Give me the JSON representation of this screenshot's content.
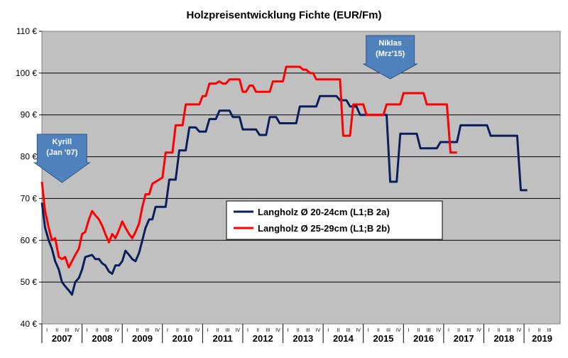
{
  "chart_data": {
    "type": "line",
    "title": "Holzpreisentwicklung Fichte (EUR/Fm)",
    "ylim": [
      40,
      110
    ],
    "yticks": [
      40,
      50,
      60,
      70,
      80,
      90,
      100,
      110
    ],
    "ytick_suffix": " €",
    "xlim": [
      2006.5,
      2019.4
    ],
    "quarter_labels": [
      "I",
      "II",
      "III",
      "IV"
    ],
    "years": [
      "2007",
      "2008",
      "2009",
      "2010",
      "2011",
      "2012",
      "2013",
      "2014",
      "2015",
      "2016",
      "2017",
      "2018",
      "2019"
    ],
    "grid": true,
    "legend_position": "center",
    "colors": {
      "plot_bg": "#c0c0c0",
      "series1": "#0a1f5c",
      "series2": "#ff0000",
      "annotation": "#4f81bd"
    },
    "series": [
      {
        "name": "Langholz Ø 20-24cm (L1;B 2a)",
        "color": "#0a1f5c",
        "points": [
          [
            2006.5,
            69
          ],
          [
            2006.58,
            63
          ],
          [
            2006.67,
            60
          ],
          [
            2006.75,
            58
          ],
          [
            2006.83,
            55
          ],
          [
            2006.92,
            53
          ],
          [
            2007.0,
            50
          ],
          [
            2007.08,
            49
          ],
          [
            2007.17,
            48
          ],
          [
            2007.25,
            47
          ],
          [
            2007.33,
            50
          ],
          [
            2007.42,
            51
          ],
          [
            2007.5,
            53
          ],
          [
            2007.58,
            56
          ],
          [
            2007.75,
            56.5
          ],
          [
            2007.83,
            55.5
          ],
          [
            2007.92,
            55.5
          ],
          [
            2008.0,
            54.5
          ],
          [
            2008.08,
            54
          ],
          [
            2008.17,
            52.5
          ],
          [
            2008.25,
            52
          ],
          [
            2008.33,
            54
          ],
          [
            2008.42,
            54
          ],
          [
            2008.5,
            55
          ],
          [
            2008.58,
            57.5
          ],
          [
            2008.67,
            56.5
          ],
          [
            2008.75,
            55.5
          ],
          [
            2008.83,
            55
          ],
          [
            2008.92,
            57
          ],
          [
            2009.0,
            60
          ],
          [
            2009.08,
            63
          ],
          [
            2009.17,
            65
          ],
          [
            2009.25,
            65
          ],
          [
            2009.33,
            68
          ],
          [
            2009.58,
            68
          ],
          [
            2009.67,
            74.5
          ],
          [
            2009.83,
            74.5
          ],
          [
            2009.92,
            81.5
          ],
          [
            2010.08,
            81.5
          ],
          [
            2010.17,
            87
          ],
          [
            2010.33,
            87
          ],
          [
            2010.42,
            86
          ],
          [
            2010.58,
            86
          ],
          [
            2010.67,
            89
          ],
          [
            2010.83,
            89
          ],
          [
            2010.92,
            91
          ],
          [
            2011.17,
            91
          ],
          [
            2011.25,
            89.5
          ],
          [
            2011.42,
            89.5
          ],
          [
            2011.5,
            86.5
          ],
          [
            2011.83,
            86.5
          ],
          [
            2011.92,
            85.2
          ],
          [
            2012.08,
            85.2
          ],
          [
            2012.17,
            89.5
          ],
          [
            2012.33,
            89.5
          ],
          [
            2012.42,
            88
          ],
          [
            2012.83,
            88
          ],
          [
            2012.92,
            92
          ],
          [
            2013.33,
            92
          ],
          [
            2013.42,
            94.5
          ],
          [
            2013.83,
            94.5
          ],
          [
            2013.92,
            93.5
          ],
          [
            2014.08,
            93.5
          ],
          [
            2014.17,
            92
          ],
          [
            2014.33,
            92
          ],
          [
            2014.42,
            90
          ],
          [
            2015.08,
            90
          ],
          [
            2015.17,
            74
          ],
          [
            2015.33,
            74
          ],
          [
            2015.42,
            85.5
          ],
          [
            2015.83,
            85.5
          ],
          [
            2015.92,
            82
          ],
          [
            2016.33,
            82
          ],
          [
            2016.42,
            83.5
          ],
          [
            2016.83,
            83.5
          ],
          [
            2016.92,
            87.5
          ],
          [
            2017.58,
            87.5
          ],
          [
            2017.67,
            85
          ],
          [
            2018.33,
            85
          ],
          [
            2018.42,
            72
          ],
          [
            2018.58,
            72
          ]
        ]
      },
      {
        "name": "Langholz Ø 25-29cm (L1;B 2b)",
        "color": "#ff0000",
        "points": [
          [
            2006.5,
            74
          ],
          [
            2006.58,
            67
          ],
          [
            2006.67,
            63
          ],
          [
            2006.75,
            60
          ],
          [
            2006.83,
            60.5
          ],
          [
            2006.92,
            56
          ],
          [
            2007.0,
            55.5
          ],
          [
            2007.08,
            56
          ],
          [
            2007.17,
            53.5
          ],
          [
            2007.25,
            55
          ],
          [
            2007.33,
            56.5
          ],
          [
            2007.42,
            58
          ],
          [
            2007.5,
            61.5
          ],
          [
            2007.58,
            62
          ],
          [
            2007.67,
            65
          ],
          [
            2007.75,
            67
          ],
          [
            2007.83,
            66
          ],
          [
            2007.92,
            65
          ],
          [
            2008.0,
            63.5
          ],
          [
            2008.08,
            61.5
          ],
          [
            2008.17,
            59.5
          ],
          [
            2008.25,
            61.5
          ],
          [
            2008.33,
            60.5
          ],
          [
            2008.42,
            62.5
          ],
          [
            2008.5,
            64.5
          ],
          [
            2008.58,
            63
          ],
          [
            2008.67,
            61.5
          ],
          [
            2008.75,
            60.5
          ],
          [
            2008.83,
            62
          ],
          [
            2008.92,
            64
          ],
          [
            2009.0,
            68
          ],
          [
            2009.08,
            71
          ],
          [
            2009.17,
            71
          ],
          [
            2009.25,
            73.5
          ],
          [
            2009.33,
            74
          ],
          [
            2009.42,
            74.5
          ],
          [
            2009.5,
            75
          ],
          [
            2009.58,
            81
          ],
          [
            2009.75,
            81
          ],
          [
            2009.83,
            87.5
          ],
          [
            2010.0,
            87.5
          ],
          [
            2010.08,
            92.5
          ],
          [
            2010.42,
            92.5
          ],
          [
            2010.5,
            94.5
          ],
          [
            2010.58,
            94.5
          ],
          [
            2010.67,
            97.5
          ],
          [
            2010.83,
            97.5
          ],
          [
            2010.92,
            98
          ],
          [
            2011.0,
            97.5
          ],
          [
            2011.08,
            97.5
          ],
          [
            2011.17,
            98.5
          ],
          [
            2011.25,
            98.5
          ],
          [
            2011.42,
            98.5
          ],
          [
            2011.5,
            95.5
          ],
          [
            2011.58,
            95.5
          ],
          [
            2011.67,
            97
          ],
          [
            2011.75,
            97
          ],
          [
            2011.83,
            95.5
          ],
          [
            2012.17,
            95.5
          ],
          [
            2012.25,
            98
          ],
          [
            2012.5,
            98
          ],
          [
            2012.58,
            101.5
          ],
          [
            2012.92,
            101.5
          ],
          [
            2013.0,
            100.8
          ],
          [
            2013.08,
            100.8
          ],
          [
            2013.17,
            100
          ],
          [
            2013.25,
            100
          ],
          [
            2013.33,
            98.5
          ],
          [
            2013.92,
            98.5
          ],
          [
            2014.0,
            85
          ],
          [
            2014.17,
            85
          ],
          [
            2014.25,
            92.5
          ],
          [
            2014.5,
            92.5
          ],
          [
            2014.58,
            90
          ],
          [
            2015.0,
            90
          ],
          [
            2015.08,
            92.5
          ],
          [
            2015.42,
            92.5
          ],
          [
            2015.5,
            95.2
          ],
          [
            2016.0,
            95.2
          ],
          [
            2016.08,
            92.5
          ],
          [
            2016.58,
            92.5
          ],
          [
            2016.67,
            81
          ],
          [
            2016.83,
            81
          ]
        ]
      }
    ],
    "annotations": [
      {
        "lines": [
          "Kyrill",
          "(Jan '07)"
        ],
        "x": 2007.0
      },
      {
        "lines": [
          "Niklas",
          "(Mrz'15)"
        ],
        "x": 2015.17
      }
    ]
  }
}
